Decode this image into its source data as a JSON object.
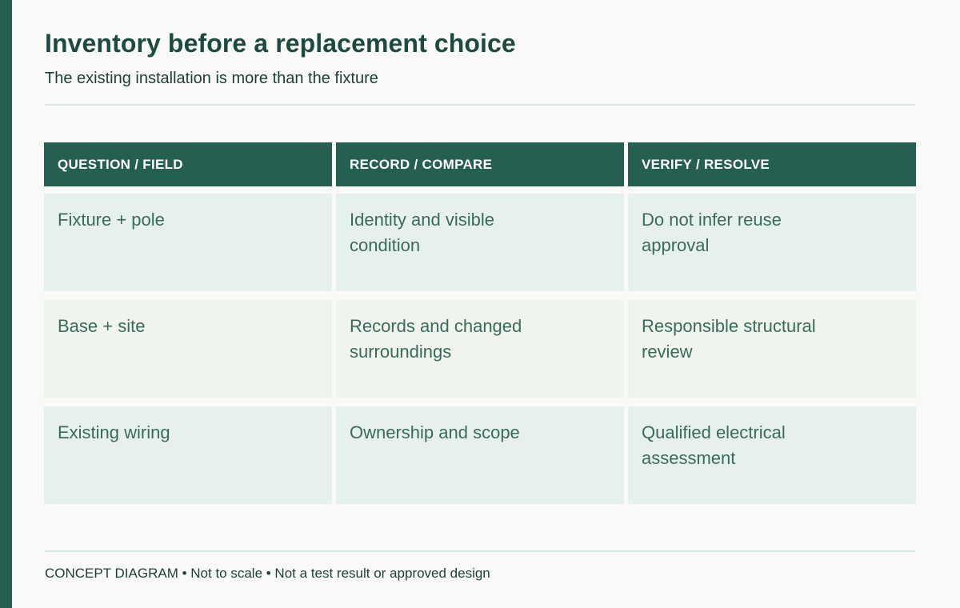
{
  "title": "Inventory before a replacement choice",
  "subtitle": "The existing installation is more than the fixture",
  "table": {
    "headers": [
      "QUESTION / FIELD",
      "RECORD / COMPARE",
      "VERIFY / RESOLVE"
    ],
    "rows": [
      [
        "Fixture + pole",
        "Identity and visible condition",
        "Do not infer reuse approval"
      ],
      [
        "Base + site",
        "Records and changed surroundings",
        "Responsible structural review"
      ],
      [
        "Existing wiring",
        "Ownership and scope",
        "Qualified electrical assessment"
      ]
    ]
  },
  "footnote": "CONCEPT DIAGRAM • Not to scale • Not a test result or approved design",
  "colors": {
    "accent": "#245f51",
    "row_alt_1": "#e7f1ec",
    "row_alt_2": "#f0f4ee",
    "background": "#f9f9f7"
  }
}
